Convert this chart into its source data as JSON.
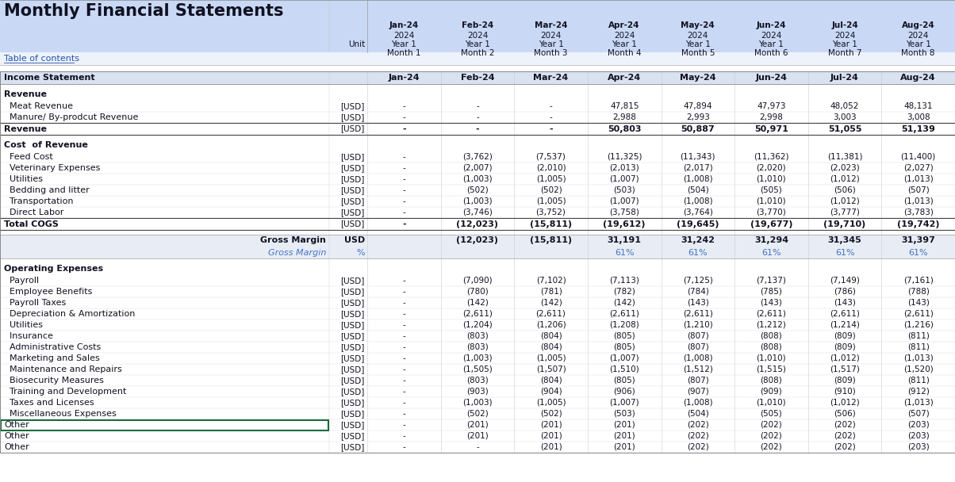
{
  "title": "Monthly Financial Statements",
  "header_bg": "#c9d9f5",
  "section_header_bg": "#d8e2f0",
  "gross_margin_bg": "#e8edf5",
  "toc_color": "#2255aa",
  "blue_text": "#4472c4",
  "dark_text": "#111122",
  "green_border": "#1a6b3c",
  "month_headers": [
    [
      "Month 1",
      "Year 1",
      "2024",
      "Jan-24"
    ],
    [
      "Month 2",
      "Year 1",
      "2024",
      "Feb-24"
    ],
    [
      "Month 3",
      "Year 1",
      "2024",
      "Mar-24"
    ],
    [
      "Month 4",
      "Year 1",
      "2024",
      "Apr-24"
    ],
    [
      "Month 5",
      "Year 1",
      "2024",
      "May-24"
    ],
    [
      "Month 6",
      "Year 1",
      "2024",
      "Jun-24"
    ],
    [
      "Month 7",
      "Year 1",
      "2024",
      "Jul-24"
    ],
    [
      "Month 8",
      "Year 1",
      "2024",
      "Aug-24"
    ]
  ],
  "rows": [
    {
      "label": "Income Statement",
      "unit": "",
      "vals": [
        "Jan-24",
        "Feb-24",
        "Mar-24",
        "Apr-24",
        "May-24",
        "Jun-24",
        "Jul-24",
        "Aug-24"
      ],
      "type": "section_header"
    },
    {
      "label": "",
      "unit": "",
      "vals": [
        "",
        "",
        "",
        "",
        "",
        "",
        "",
        ""
      ],
      "type": "spacer"
    },
    {
      "label": "Revenue",
      "unit": "",
      "vals": [
        "",
        "",
        "",
        "",
        "",
        "",
        "",
        ""
      ],
      "type": "group_header"
    },
    {
      "label": "  Meat Revenue",
      "unit": "[USD]",
      "vals": [
        "-",
        "-",
        "-",
        "47,815",
        "47,894",
        "47,973",
        "48,052",
        "48,131"
      ],
      "type": "normal"
    },
    {
      "label": "  Manure/ By-prodcut Revenue",
      "unit": "[USD]",
      "vals": [
        "-",
        "-",
        "-",
        "2,988",
        "2,993",
        "2,998",
        "3,003",
        "3,008"
      ],
      "type": "normal"
    },
    {
      "label": "Revenue",
      "unit": "[USD]",
      "vals": [
        "-",
        "-",
        "-",
        "50,803",
        "50,887",
        "50,971",
        "51,055",
        "51,139"
      ],
      "type": "total"
    },
    {
      "label": "",
      "unit": "",
      "vals": [
        "",
        "",
        "",
        "",
        "",
        "",
        "",
        ""
      ],
      "type": "spacer"
    },
    {
      "label": "Cost  of Revenue",
      "unit": "",
      "vals": [
        "",
        "",
        "",
        "",
        "",
        "",
        "",
        ""
      ],
      "type": "group_header"
    },
    {
      "label": "  Feed Cost",
      "unit": "[USD]",
      "vals": [
        "-",
        "(3,762)",
        "(7,537)",
        "(11,325)",
        "(11,343)",
        "(11,362)",
        "(11,381)",
        "(11,400)"
      ],
      "type": "normal"
    },
    {
      "label": "  Veterinary Expenses",
      "unit": "[USD]",
      "vals": [
        "-",
        "(2,007)",
        "(2,010)",
        "(2,013)",
        "(2,017)",
        "(2,020)",
        "(2,023)",
        "(2,027)"
      ],
      "type": "normal"
    },
    {
      "label": "  Utilities",
      "unit": "[USD]",
      "vals": [
        "-",
        "(1,003)",
        "(1,005)",
        "(1,007)",
        "(1,008)",
        "(1,010)",
        "(1,012)",
        "(1,013)"
      ],
      "type": "normal"
    },
    {
      "label": "  Bedding and litter",
      "unit": "[USD]",
      "vals": [
        "-",
        "(502)",
        "(502)",
        "(503)",
        "(504)",
        "(505)",
        "(506)",
        "(507)"
      ],
      "type": "normal"
    },
    {
      "label": "  Transportation",
      "unit": "[USD]",
      "vals": [
        "-",
        "(1,003)",
        "(1,005)",
        "(1,007)",
        "(1,008)",
        "(1,010)",
        "(1,012)",
        "(1,013)"
      ],
      "type": "normal"
    },
    {
      "label": "  Direct Labor",
      "unit": "[USD]",
      "vals": [
        "-",
        "(3,746)",
        "(3,752)",
        "(3,758)",
        "(3,764)",
        "(3,770)",
        "(3,777)",
        "(3,783)"
      ],
      "type": "normal"
    },
    {
      "label": "Total COGS",
      "unit": "[USD]",
      "vals": [
        "-",
        "(12,023)",
        "(15,811)",
        "(19,612)",
        "(19,645)",
        "(19,677)",
        "(19,710)",
        "(19,742)"
      ],
      "type": "total"
    },
    {
      "label": "",
      "unit": "",
      "vals": [
        "",
        "",
        "",
        "",
        "",
        "",
        "",
        ""
      ],
      "type": "spacer"
    },
    {
      "label": "Gross Margin",
      "unit": "USD",
      "vals": [
        "",
        "(12,023)",
        "(15,811)",
        "31,191",
        "31,242",
        "31,294",
        "31,345",
        "31,397"
      ],
      "type": "gross_margin"
    },
    {
      "label": "Gross Margin",
      "unit": "%",
      "vals": [
        "",
        "",
        "",
        "61%",
        "61%",
        "61%",
        "61%",
        "61%"
      ],
      "type": "gross_margin_pct"
    },
    {
      "label": "",
      "unit": "",
      "vals": [
        "",
        "",
        "",
        "",
        "",
        "",
        "",
        ""
      ],
      "type": "spacer"
    },
    {
      "label": "Operating Expenses",
      "unit": "",
      "vals": [
        "",
        "",
        "",
        "",
        "",
        "",
        "",
        ""
      ],
      "type": "group_header"
    },
    {
      "label": "  Payroll",
      "unit": "[USD]",
      "vals": [
        "-",
        "(7,090)",
        "(7,102)",
        "(7,113)",
        "(7,125)",
        "(7,137)",
        "(7,149)",
        "(7,161)"
      ],
      "type": "normal"
    },
    {
      "label": "  Employee Benefits",
      "unit": "[USD]",
      "vals": [
        "-",
        "(780)",
        "(781)",
        "(782)",
        "(784)",
        "(785)",
        "(786)",
        "(788)"
      ],
      "type": "normal"
    },
    {
      "label": "  Payroll Taxes",
      "unit": "[USD]",
      "vals": [
        "-",
        "(142)",
        "(142)",
        "(142)",
        "(143)",
        "(143)",
        "(143)",
        "(143)"
      ],
      "type": "normal"
    },
    {
      "label": "  Depreciation & Amortization",
      "unit": "[USD]",
      "vals": [
        "-",
        "(2,611)",
        "(2,611)",
        "(2,611)",
        "(2,611)",
        "(2,611)",
        "(2,611)",
        "(2,611)"
      ],
      "type": "normal"
    },
    {
      "label": "  Utilities",
      "unit": "[USD]",
      "vals": [
        "-",
        "(1,204)",
        "(1,206)",
        "(1,208)",
        "(1,210)",
        "(1,212)",
        "(1,214)",
        "(1,216)"
      ],
      "type": "normal"
    },
    {
      "label": "  Insurance",
      "unit": "[USD]",
      "vals": [
        "-",
        "(803)",
        "(804)",
        "(805)",
        "(807)",
        "(808)",
        "(809)",
        "(811)"
      ],
      "type": "normal"
    },
    {
      "label": "  Administrative Costs",
      "unit": "[USD]",
      "vals": [
        "-",
        "(803)",
        "(804)",
        "(805)",
        "(807)",
        "(808)",
        "(809)",
        "(811)"
      ],
      "type": "normal"
    },
    {
      "label": "  Marketing and Sales",
      "unit": "[USD]",
      "vals": [
        "-",
        "(1,003)",
        "(1,005)",
        "(1,007)",
        "(1,008)",
        "(1,010)",
        "(1,012)",
        "(1,013)"
      ],
      "type": "normal"
    },
    {
      "label": "  Maintenance and Repairs",
      "unit": "[USD]",
      "vals": [
        "-",
        "(1,505)",
        "(1,507)",
        "(1,510)",
        "(1,512)",
        "(1,515)",
        "(1,517)",
        "(1,520)"
      ],
      "type": "normal"
    },
    {
      "label": "  Biosecurity Measures",
      "unit": "[USD]",
      "vals": [
        "-",
        "(803)",
        "(804)",
        "(805)",
        "(807)",
        "(808)",
        "(809)",
        "(811)"
      ],
      "type": "normal"
    },
    {
      "label": "  Training and Development",
      "unit": "[USD]",
      "vals": [
        "-",
        "(903)",
        "(904)",
        "(906)",
        "(907)",
        "(909)",
        "(910)",
        "(912)"
      ],
      "type": "normal"
    },
    {
      "label": "  Taxes and Licenses",
      "unit": "[USD]",
      "vals": [
        "-",
        "(1,003)",
        "(1,005)",
        "(1,007)",
        "(1,008)",
        "(1,010)",
        "(1,012)",
        "(1,013)"
      ],
      "type": "normal"
    },
    {
      "label": "  Miscellaneous Expenses",
      "unit": "[USD]",
      "vals": [
        "-",
        "(502)",
        "(502)",
        "(503)",
        "(504)",
        "(505)",
        "(506)",
        "(507)"
      ],
      "type": "normal"
    },
    {
      "label": "Other",
      "unit": "[USD]",
      "vals": [
        "-",
        "(201)",
        "(201)",
        "(201)",
        "(202)",
        "(202)",
        "(202)",
        "(203)"
      ],
      "type": "normal_green"
    },
    {
      "label": "Other",
      "unit": "[USD]",
      "vals": [
        "-",
        "(201)",
        "(201)",
        "(201)",
        "(202)",
        "(202)",
        "(202)",
        "(203)"
      ],
      "type": "normal"
    },
    {
      "label": "Other",
      "unit": "[USD]",
      "vals": [
        "-",
        "-",
        "(201)",
        "(201)",
        "(202)",
        "(202)",
        "(202)",
        "(203)"
      ],
      "type": "normal"
    }
  ]
}
